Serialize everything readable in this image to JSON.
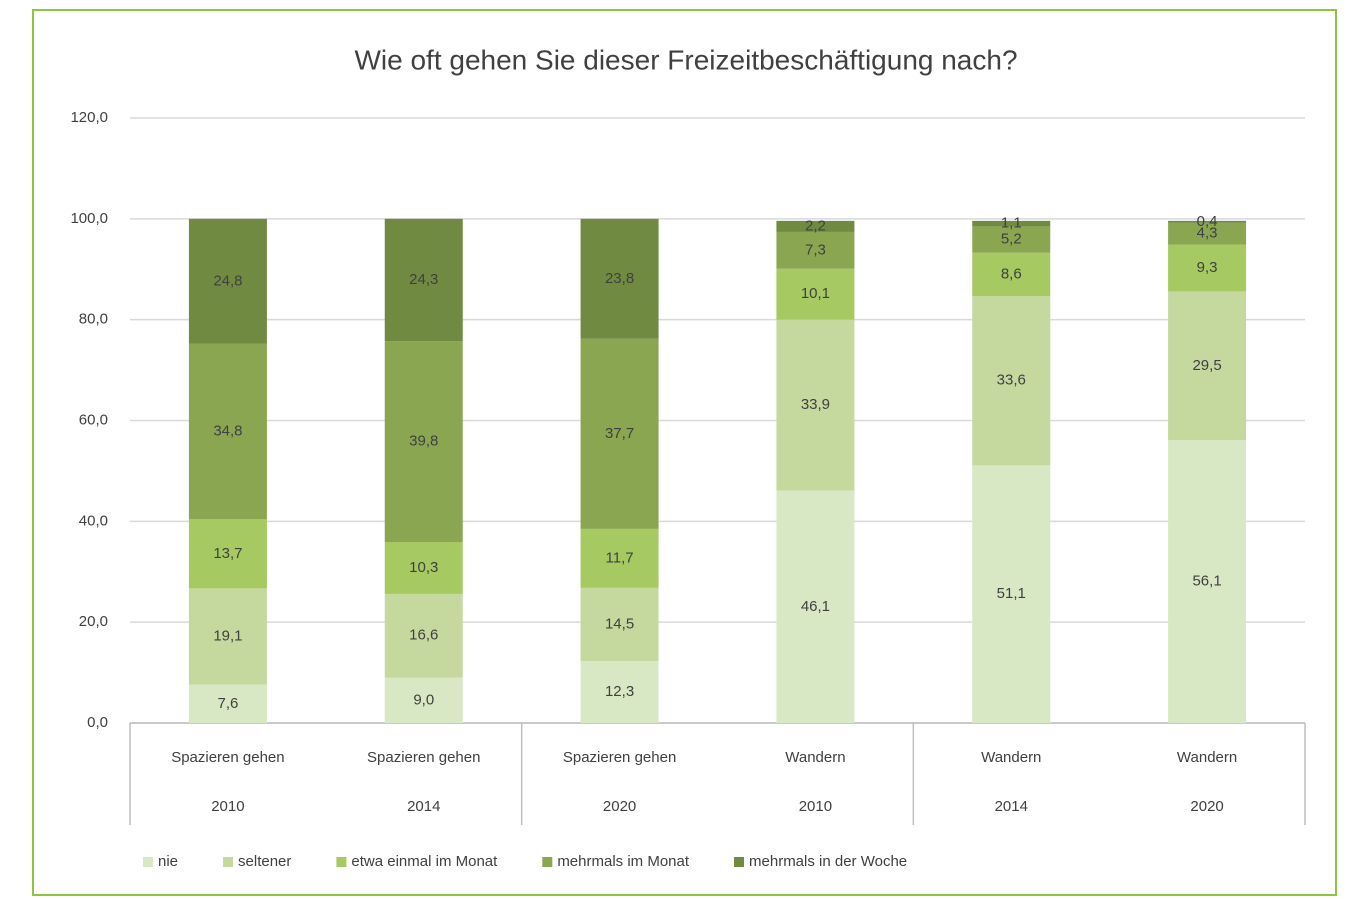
{
  "chart_data": {
    "type": "stacked_bar",
    "title": "Wie oft gehen Sie dieser Freizeitbeschäftigung nach?",
    "categories": [
      {
        "group": "Spazieren gehen",
        "year": "2010"
      },
      {
        "group": "Spazieren gehen",
        "year": "2014"
      },
      {
        "group": "Spazieren gehen",
        "year": "2020"
      },
      {
        "group": "Wandern",
        "year": "2010"
      },
      {
        "group": "Wandern",
        "year": "2014"
      },
      {
        "group": "Wandern",
        "year": "2020"
      }
    ],
    "series": [
      {
        "name": "nie",
        "color": "#d9e8c4",
        "values": [
          7.6,
          9.0,
          12.3,
          46.1,
          51.1,
          56.1
        ],
        "value_labels": [
          "7,6",
          "9,0",
          "12,3",
          "46,1",
          "51,1",
          "56,1"
        ]
      },
      {
        "name": "seltener",
        "color": "#c5d99f",
        "values": [
          19.1,
          16.6,
          14.5,
          33.9,
          33.6,
          29.5
        ],
        "value_labels": [
          "19,1",
          "16,6",
          "14,5",
          "33,9",
          "33,6",
          "29,5"
        ]
      },
      {
        "name": "etwa einmal im Monat",
        "color": "#a6c962",
        "values": [
          13.7,
          10.3,
          11.7,
          10.1,
          8.6,
          9.3
        ],
        "value_labels": [
          "13,7",
          "10,3",
          "11,7",
          "10,1",
          "8,6",
          "9,3"
        ]
      },
      {
        "name": "mehrmals im Monat",
        "color": "#8ba651",
        "values": [
          34.8,
          39.8,
          37.7,
          7.3,
          5.2,
          4.3
        ],
        "value_labels": [
          "34,8",
          "39,8",
          "37,7",
          "7,3",
          "5,2",
          "4,3"
        ]
      },
      {
        "name": "mehrmals in der Woche",
        "color": "#708b41",
        "values": [
          24.8,
          24.3,
          23.8,
          2.2,
          1.1,
          0.4
        ],
        "value_labels": [
          "24,8",
          "24,3",
          "23,8",
          "2,2",
          "1,1",
          "0,4"
        ]
      }
    ],
    "ylim": [
      0,
      120
    ],
    "yticks": [
      {
        "value": 0,
        "label": "0,0"
      },
      {
        "value": 20,
        "label": "20,0"
      },
      {
        "value": 40,
        "label": "40,0"
      },
      {
        "value": 60,
        "label": "60,0"
      },
      {
        "value": 80,
        "label": "80,0"
      },
      {
        "value": 100,
        "label": "100,0"
      },
      {
        "value": 120,
        "label": "120,0"
      }
    ],
    "grid": true,
    "legend": "bottom"
  }
}
